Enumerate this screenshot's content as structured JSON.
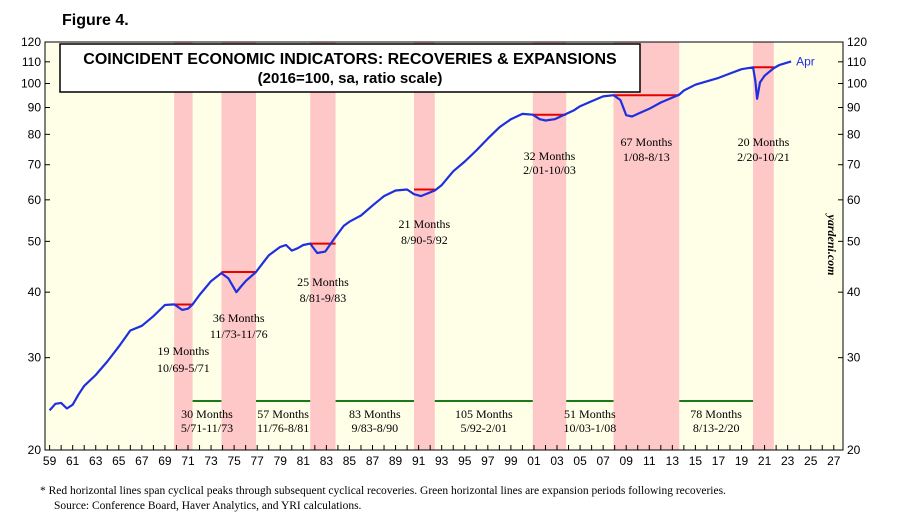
{
  "figure_label": "Figure 4.",
  "footnotes": {
    "note": "*   Red horizontal lines span cyclical peaks through subsequent cyclical recoveries. Green horizontal lines are expansion periods following recoveries.",
    "source": "Source: Conference Board, Haver Analytics, and YRI calculations."
  },
  "colors": {
    "plot_bg": "#ffffe8",
    "line": "#1f2fe0",
    "red": "#e80000",
    "green": "#1a7a1a",
    "shade": "#ffc8c8"
  },
  "chart_data": {
    "type": "line",
    "title": "COINCIDENT ECONOMIC INDICATORS: RECOVERIES & EXPANSIONS",
    "subtitle": "(2016=100, sa, ratio scale)",
    "watermark": "yardeni.com",
    "end_label": "Apr",
    "y_scale": "log",
    "ylim": [
      20,
      120
    ],
    "xlim": [
      1958.6,
      2027.8
    ],
    "y_ticks": [
      20,
      30,
      40,
      50,
      60,
      70,
      80,
      90,
      100,
      110,
      120
    ],
    "x_ticks": [
      "59",
      "61",
      "63",
      "65",
      "67",
      "69",
      "71",
      "73",
      "75",
      "77",
      "79",
      "81",
      "83",
      "85",
      "87",
      "89",
      "91",
      "93",
      "95",
      "97",
      "99",
      "01",
      "03",
      "05",
      "07",
      "09",
      "11",
      "13",
      "15",
      "17",
      "19",
      "21",
      "23",
      "25",
      "27"
    ],
    "x_tick_years": [
      1959,
      1961,
      1963,
      1965,
      1967,
      1969,
      1971,
      1973,
      1975,
      1977,
      1979,
      1981,
      1983,
      1985,
      1987,
      1989,
      1991,
      1993,
      1995,
      1997,
      1999,
      2001,
      2003,
      2005,
      2007,
      2009,
      2011,
      2013,
      2015,
      2017,
      2019,
      2021,
      2023,
      2025,
      2027
    ],
    "legend": "none",
    "series": [
      {
        "x": [
          1959.0,
          1959.5,
          1960.0,
          1960.5,
          1961.0,
          1961.5,
          1962.0,
          1963.0,
          1964.0,
          1965.0,
          1966.0,
          1967.0,
          1968.0,
          1969.0,
          1969.8,
          1970.5,
          1971.0,
          1971.4,
          1972.0,
          1973.0,
          1973.9,
          1974.5,
          1975.2,
          1975.6,
          1976.0,
          1976.9,
          1977.5,
          1978.0,
          1979.0,
          1979.5,
          1980.0,
          1980.5,
          1981.0,
          1981.6,
          1982.2,
          1982.9,
          1983.8,
          1984.5,
          1985.0,
          1986.0,
          1987.0,
          1988.0,
          1989.0,
          1990.0,
          1990.6,
          1991.2,
          1992.4,
          1993.0,
          1994.0,
          1995.0,
          1996.0,
          1997.0,
          1998.0,
          1999.0,
          2000.0,
          2000.9,
          2001.5,
          2002.0,
          2002.8,
          2003.8,
          2004.5,
          2005.0,
          2006.0,
          2007.0,
          2007.9,
          2008.5,
          2009.0,
          2009.5,
          2010.0,
          2011.0,
          2012.0,
          2013.0,
          2013.6,
          2014.0,
          2015.0,
          2016.0,
          2017.0,
          2018.0,
          2019.0,
          2020.0,
          2020.2,
          2020.35,
          2020.6,
          2021.0,
          2021.8,
          2022.3,
          2023.3
        ],
        "values": [
          23.8,
          24.5,
          24.6,
          24.0,
          24.4,
          25.5,
          26.5,
          27.8,
          29.5,
          31.5,
          33.8,
          34.5,
          36.0,
          37.8,
          37.9,
          37.0,
          37.2,
          37.9,
          39.5,
          42.0,
          43.5,
          42.5,
          40.0,
          41.0,
          42.0,
          43.7,
          45.5,
          47.0,
          48.8,
          49.2,
          48.0,
          48.5,
          49.2,
          49.5,
          47.5,
          47.8,
          51.0,
          53.5,
          54.5,
          56.0,
          58.5,
          61.0,
          62.5,
          62.8,
          61.5,
          61.0,
          62.5,
          64.0,
          68.0,
          71.0,
          74.5,
          78.5,
          82.5,
          85.5,
          87.5,
          87.2,
          85.5,
          85.0,
          85.5,
          87.5,
          89.0,
          90.5,
          92.5,
          94.5,
          95.0,
          93.0,
          87.0,
          86.5,
          87.5,
          89.5,
          92.0,
          94.0,
          95.2,
          97.0,
          99.5,
          101.0,
          102.5,
          104.5,
          106.5,
          107.4,
          101.0,
          93.5,
          100.5,
          103.5,
          107.0,
          108.5,
          110.2
        ]
      }
    ],
    "recoveries": [
      {
        "label1": "19 Months",
        "label2": "10/69-5/71",
        "start": 1969.8,
        "end": 1971.4,
        "level": 37.9
      },
      {
        "label1": "36 Months",
        "label2": "11/73-11/76",
        "start": 1973.9,
        "end": 1976.9,
        "level": 43.7
      },
      {
        "label1": "25 Months",
        "label2": "8/81-9/83",
        "start": 1981.6,
        "end": 1983.8,
        "level": 49.5
      },
      {
        "label1": "21 Months",
        "label2": "8/90-5/92",
        "start": 1990.6,
        "end": 1992.4,
        "level": 62.8
      },
      {
        "label1": "32 Months",
        "label2": "2/01-10/03",
        "start": 2000.9,
        "end": 2003.8,
        "level": 87.2
      },
      {
        "label1": "67 Months",
        "label2": "1/08-8/13",
        "start": 2007.9,
        "end": 2013.6,
        "level": 95.0
      },
      {
        "label1": "20 Months",
        "label2": "2/20-10/21",
        "start": 2020.0,
        "end": 2021.8,
        "level": 107.4
      }
    ],
    "expansions": [
      {
        "label1": "30 Months",
        "label2": "5/71-11/73",
        "start": 1971.4,
        "end": 1973.9
      },
      {
        "label1": "57 Months",
        "label2": "11/76-8/81",
        "start": 1976.9,
        "end": 1981.6
      },
      {
        "label1": "83 Months",
        "label2": "9/83-8/90",
        "start": 1983.8,
        "end": 1990.6
      },
      {
        "label1": "105 Months",
        "label2": "5/92-2/01",
        "start": 1992.4,
        "end": 2000.9
      },
      {
        "label1": "51 Months",
        "label2": "10/03-1/08",
        "start": 2003.8,
        "end": 2007.9
      },
      {
        "label1": "78 Months",
        "label2": "8/13-2/20",
        "start": 2013.6,
        "end": 2020.0
      }
    ]
  }
}
